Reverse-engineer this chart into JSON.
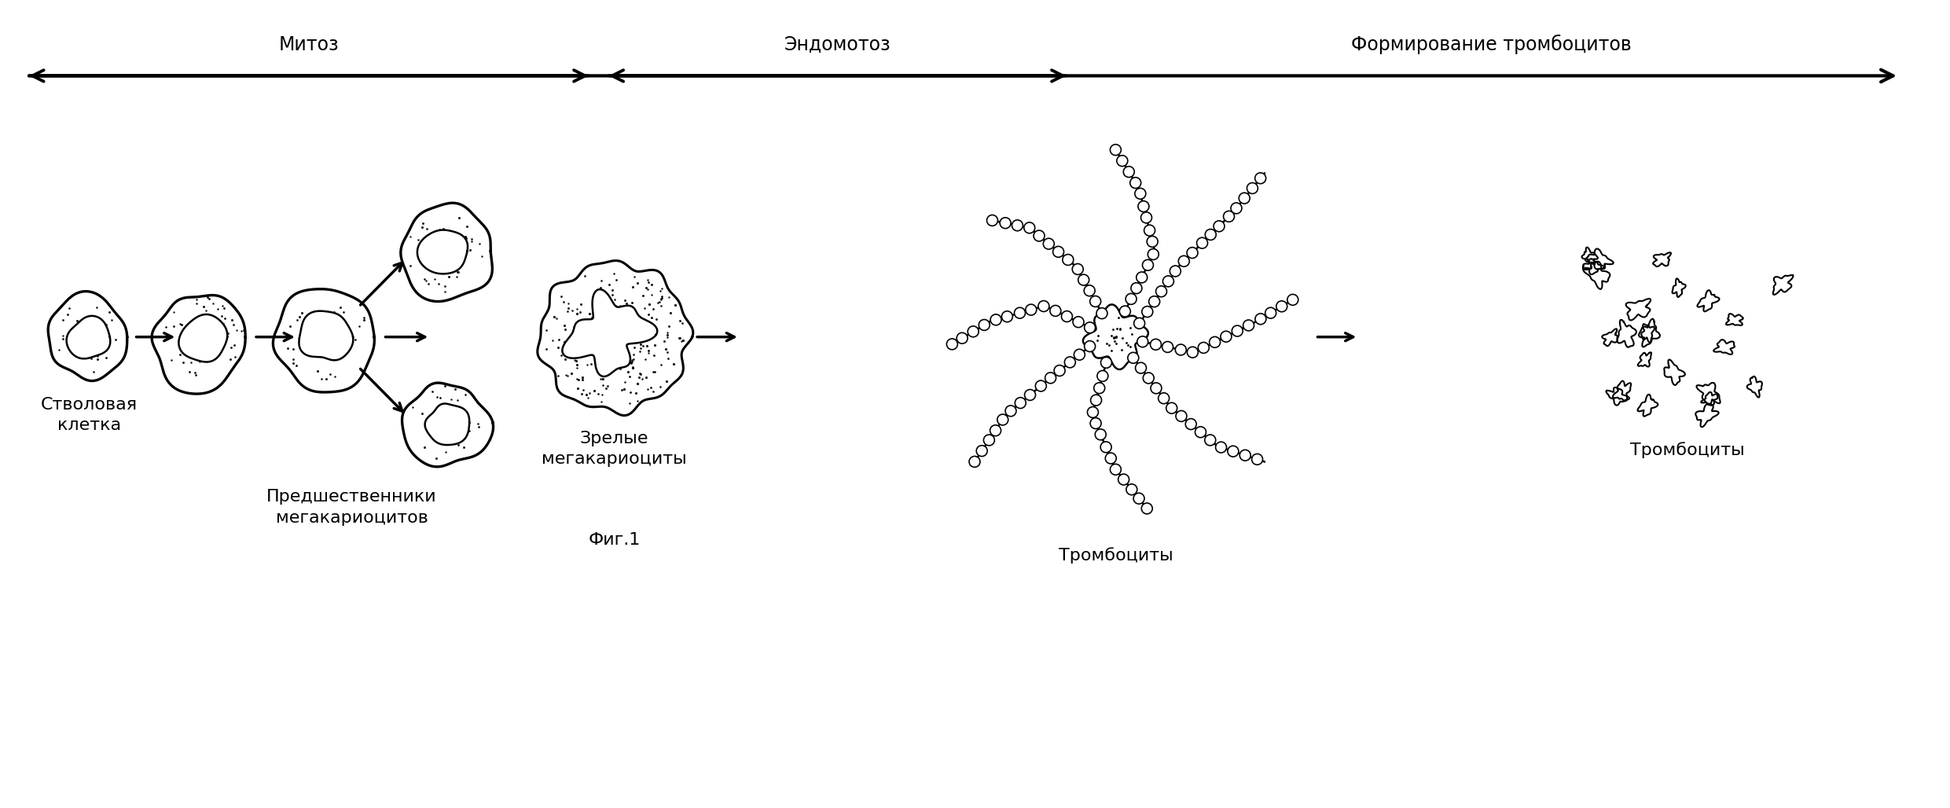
{
  "bg_color": "#ffffff",
  "fig_width": 24.81,
  "fig_height": 10.28,
  "dpi": 100,
  "title_mitoz": "Митоз",
  "title_endomitoz": "Эндомотоз",
  "title_formation": "Формирование тромбоцитов",
  "label_stem": "Стволовая\nклетка",
  "label_precursors": "Предшественники\nмегакариоцитов",
  "label_mature": "Зрелые\nмегакариоциты",
  "label_proplatelets": "Тромбоциты",
  "label_platelets": "Тромбоциты",
  "label_fig": "Фиг.1",
  "font_size_labels": 16,
  "font_size_titles": 17,
  "arrow_color": "#000000"
}
